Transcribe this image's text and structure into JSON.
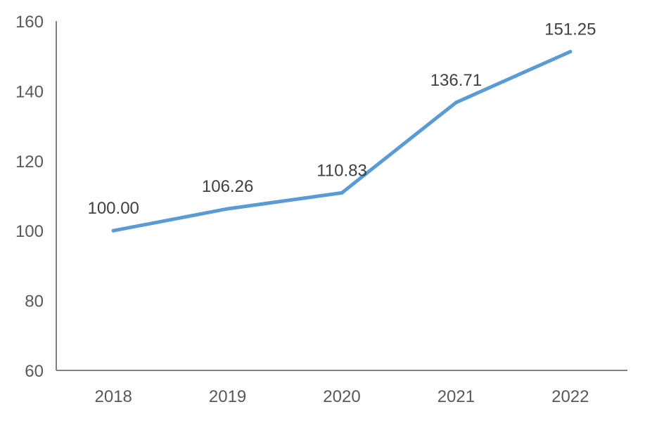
{
  "chart_data": {
    "type": "line",
    "categories": [
      "2018",
      "2019",
      "2020",
      "2021",
      "2022"
    ],
    "series": [
      {
        "values": [
          100.0,
          106.26,
          110.83,
          136.71,
          151.25
        ],
        "labels": [
          "100.00",
          "106.26",
          "110.83",
          "136.71",
          "151.25"
        ]
      }
    ],
    "ylim": [
      60,
      160
    ],
    "yticks": [
      "60",
      "80",
      "100",
      "120",
      "140",
      "160"
    ],
    "title": "",
    "xlabel": "",
    "ylabel": "",
    "grid": false,
    "legend": "none",
    "colors": {
      "line": "#5b9bd5",
      "axis": "#808080",
      "tick_text": "#595959",
      "label_text": "#404040"
    }
  }
}
